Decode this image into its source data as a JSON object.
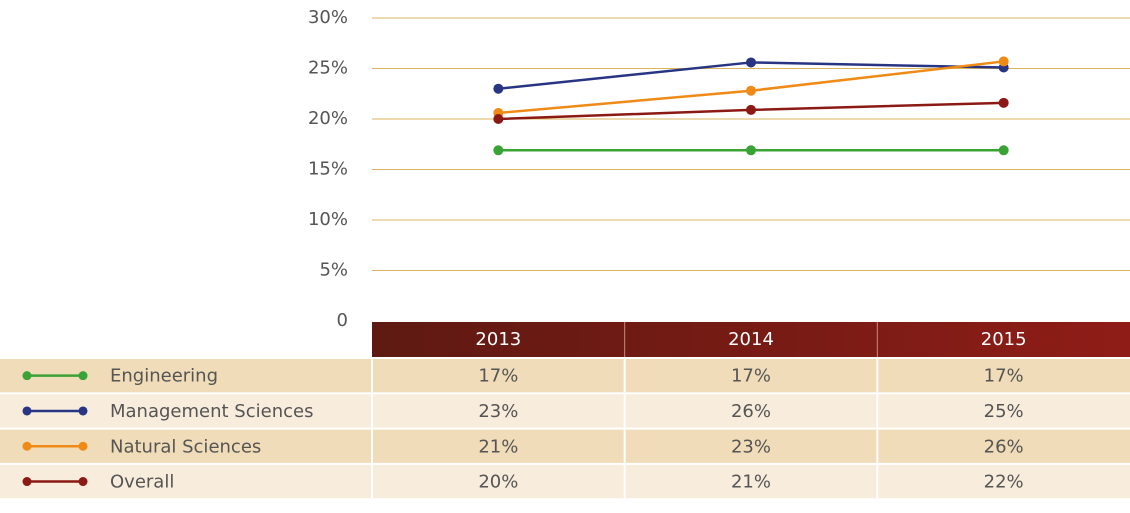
{
  "chart_data": {
    "type": "line",
    "categories": [
      "2013",
      "2014",
      "2015"
    ],
    "series": [
      {
        "name": "Engineering",
        "color": "#3aa335",
        "values": [
          16.9,
          16.9,
          16.9
        ],
        "value_labels": [
          "17%",
          "17%",
          "17%"
        ]
      },
      {
        "name": "Management Sciences",
        "color": "#283583",
        "values": [
          23,
          25.6,
          25.1
        ],
        "value_labels": [
          "23%",
          "26%",
          "25%"
        ]
      },
      {
        "name": "Natural Sciences",
        "color": "#ef8a17",
        "values": [
          20.6,
          22.8,
          25.7
        ],
        "value_labels": [
          "21%",
          "23%",
          "26%"
        ]
      },
      {
        "name": "Overall",
        "color": "#8b1a14",
        "values": [
          20.0,
          20.9,
          21.6
        ],
        "value_labels": [
          "20%",
          "21%",
          "22%"
        ]
      }
    ],
    "ylim": [
      0,
      30
    ],
    "yticks": [
      0,
      {
        "value": 5,
        "label": "5%"
      },
      {
        "value": 10,
        "label": "10%"
      },
      {
        "value": 15,
        "label": "15%"
      },
      {
        "value": 20,
        "label": "20%"
      },
      {
        "value": 25,
        "label": "25%"
      },
      {
        "value": 30,
        "label": "30%"
      }
    ],
    "grid": true
  }
}
